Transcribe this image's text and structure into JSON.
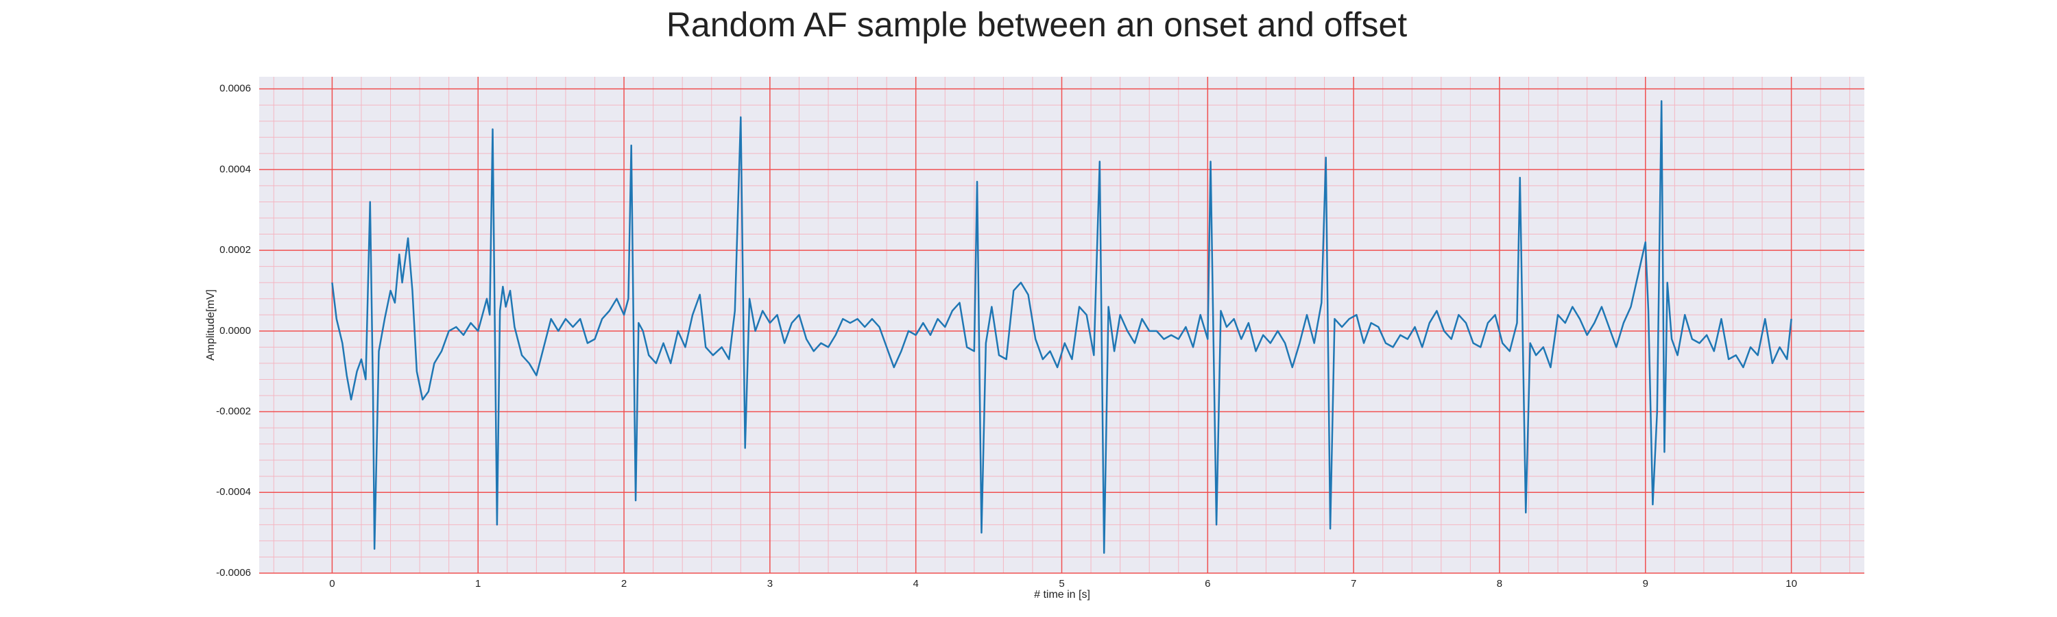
{
  "chart_data": {
    "type": "line",
    "title": "Random AF sample between an onset and offset",
    "x_label": "# time in [s]",
    "y_label": "Amplitude[mV]",
    "color": "#1f77b4",
    "grid": true,
    "minor_grid": true,
    "xlim": [
      -0.5,
      10.5
    ],
    "ylim": [
      -0.0006,
      0.00063
    ],
    "xticks": [
      0,
      1,
      2,
      3,
      4,
      5,
      6,
      7,
      8,
      9,
      10
    ],
    "yticks": [
      -0.0006,
      -0.0004,
      -0.0002,
      {
        "value": 0,
        "label": "0.0000"
      },
      0.0002,
      0.0004,
      0.0006
    ],
    "xticks_minor": [
      -0.4,
      -0.2,
      0.2,
      0.4,
      0.6,
      0.8,
      1.2,
      1.4,
      1.6,
      1.8,
      2.2,
      2.4,
      2.6,
      2.8,
      3.2,
      3.4,
      3.6,
      3.8,
      4.2,
      4.4,
      4.6,
      4.8,
      5.2,
      5.4,
      5.6,
      5.8,
      6.2,
      6.4,
      6.6,
      6.8,
      7.2,
      7.4,
      7.6,
      7.8,
      8.2,
      8.4,
      8.6,
      8.8,
      9.2,
      9.4,
      9.6,
      9.8,
      10.2,
      10.4
    ],
    "yticks_minor": [
      -0.00056,
      -0.00052,
      -0.00048,
      -0.00044,
      -0.00036,
      -0.00032,
      -0.00028,
      -0.00024,
      -0.00016,
      -0.00012,
      -8e-05,
      -4e-05,
      4e-05,
      8e-05,
      0.00012,
      0.00016,
      0.00024,
      0.00028,
      0.00032,
      0.00036,
      0.00044,
      0.00048,
      0.00052,
      0.00056
    ],
    "x": [
      0,
      0.03,
      0.07,
      0.1,
      0.13,
      0.17,
      0.2,
      0.23,
      0.26,
      0.28,
      0.29,
      0.32,
      0.36,
      0.4,
      0.43,
      0.46,
      0.48,
      0.52,
      0.55,
      0.58,
      0.62,
      0.66,
      0.7,
      0.75,
      0.8,
      0.85,
      0.9,
      0.95,
      1,
      1.03,
      1.06,
      1.08,
      1.1,
      1.13,
      1.15,
      1.17,
      1.19,
      1.22,
      1.25,
      1.3,
      1.35,
      1.4,
      1.45,
      1.5,
      1.55,
      1.6,
      1.65,
      1.7,
      1.75,
      1.8,
      1.85,
      1.9,
      1.95,
      2,
      2.03,
      2.05,
      2.08,
      2.1,
      2.13,
      2.17,
      2.22,
      2.27,
      2.32,
      2.37,
      2.42,
      2.47,
      2.52,
      2.56,
      2.61,
      2.67,
      2.72,
      2.76,
      2.8,
      2.83,
      2.86,
      2.9,
      2.95,
      3,
      3.05,
      3.1,
      3.15,
      3.2,
      3.25,
      3.3,
      3.35,
      3.4,
      3.45,
      3.5,
      3.55,
      3.6,
      3.65,
      3.7,
      3.75,
      3.8,
      3.85,
      3.9,
      3.95,
      4,
      4.05,
      4.1,
      4.15,
      4.2,
      4.25,
      4.3,
      4.35,
      4.4,
      4.42,
      4.45,
      4.48,
      4.52,
      4.57,
      4.62,
      4.67,
      4.72,
      4.77,
      4.82,
      4.87,
      4.92,
      4.97,
      5.02,
      5.07,
      5.12,
      5.17,
      5.22,
      5.26,
      5.29,
      5.32,
      5.36,
      5.4,
      5.45,
      5.5,
      5.55,
      5.6,
      5.65,
      5.7,
      5.75,
      5.8,
      5.85,
      5.9,
      5.95,
      6,
      6.02,
      6.06,
      6.09,
      6.13,
      6.18,
      6.23,
      6.28,
      6.33,
      6.38,
      6.43,
      6.48,
      6.53,
      6.58,
      6.63,
      6.68,
      6.73,
      6.78,
      6.81,
      6.84,
      6.87,
      6.92,
      6.97,
      7.02,
      7.07,
      7.12,
      7.17,
      7.22,
      7.27,
      7.32,
      7.37,
      7.42,
      7.47,
      7.52,
      7.57,
      7.62,
      7.67,
      7.72,
      7.77,
      7.82,
      7.87,
      7.92,
      7.97,
      8.02,
      8.07,
      8.12,
      8.14,
      8.18,
      8.21,
      8.25,
      8.3,
      8.35,
      8.4,
      8.45,
      8.5,
      8.55,
      8.6,
      8.65,
      8.7,
      8.75,
      8.8,
      8.85,
      8.9,
      8.95,
      9,
      9.02,
      9.05,
      9.08,
      9.11,
      9.13,
      9.15,
      9.18,
      9.22,
      9.27,
      9.32,
      9.37,
      9.42,
      9.47,
      9.52,
      9.57,
      9.62,
      9.67,
      9.72,
      9.77,
      9.82,
      9.87,
      9.92,
      9.97,
      10
    ],
    "values": [
      0.00012,
      3e-05,
      -3e-05,
      -0.00011,
      -0.00017,
      -0.0001,
      -7e-05,
      -0.00012,
      0.00032,
      -0.00015,
      -0.00054,
      -5e-05,
      3e-05,
      0.0001,
      7e-05,
      0.00019,
      0.00012,
      0.00023,
      0.0001,
      -0.0001,
      -0.00017,
      -0.00015,
      -8e-05,
      -5e-05,
      0,
      1e-05,
      -1e-05,
      2e-05,
      0,
      4e-05,
      8e-05,
      4e-05,
      0.0005,
      -0.00048,
      5e-05,
      0.00011,
      6e-05,
      0.0001,
      1e-05,
      -6e-05,
      -8e-05,
      -0.00011,
      -4e-05,
      3e-05,
      0,
      3e-05,
      1e-05,
      3e-05,
      -3e-05,
      -2e-05,
      3e-05,
      5e-05,
      8e-05,
      4e-05,
      8e-05,
      0.00046,
      -0.00042,
      2e-05,
      0,
      -6e-05,
      -8e-05,
      -3e-05,
      -8e-05,
      0,
      -4e-05,
      4e-05,
      9e-05,
      -4e-05,
      -6e-05,
      -4e-05,
      -7e-05,
      5e-05,
      0.00053,
      -0.00029,
      8e-05,
      0,
      5e-05,
      2e-05,
      4e-05,
      -3e-05,
      2e-05,
      4e-05,
      -2e-05,
      -5e-05,
      -3e-05,
      -4e-05,
      -1e-05,
      3e-05,
      2e-05,
      3e-05,
      1e-05,
      3e-05,
      1e-05,
      -4e-05,
      -9e-05,
      -5e-05,
      0,
      -1e-05,
      2e-05,
      -1e-05,
      3e-05,
      1e-05,
      5e-05,
      7e-05,
      -4e-05,
      -5e-05,
      0.00037,
      -0.0005,
      -3e-05,
      6e-05,
      -6e-05,
      -7e-05,
      0.0001,
      0.00012,
      9e-05,
      -2e-05,
      -7e-05,
      -5e-05,
      -9e-05,
      -3e-05,
      -7e-05,
      6e-05,
      4e-05,
      -6e-05,
      0.00042,
      -0.00055,
      6e-05,
      -5e-05,
      4e-05,
      0,
      -3e-05,
      3e-05,
      0,
      0,
      -2e-05,
      -1e-05,
      -2e-05,
      1e-05,
      -4e-05,
      4e-05,
      -2e-05,
      0.00042,
      -0.00048,
      5e-05,
      1e-05,
      3e-05,
      -2e-05,
      2e-05,
      -5e-05,
      -1e-05,
      -3e-05,
      0,
      -3e-05,
      -9e-05,
      -3e-05,
      4e-05,
      -3e-05,
      7e-05,
      0.00043,
      -0.00049,
      3e-05,
      1e-05,
      3e-05,
      4e-05,
      -3e-05,
      2e-05,
      1e-05,
      -3e-05,
      -4e-05,
      -1e-05,
      -2e-05,
      1e-05,
      -4e-05,
      2e-05,
      5e-05,
      0,
      -2e-05,
      4e-05,
      2e-05,
      -3e-05,
      -4e-05,
      2e-05,
      4e-05,
      -3e-05,
      -5e-05,
      2e-05,
      0.00038,
      -0.00045,
      -3e-05,
      -6e-05,
      -4e-05,
      -9e-05,
      4e-05,
      2e-05,
      6e-05,
      3e-05,
      -1e-05,
      2e-05,
      6e-05,
      1e-05,
      -4e-05,
      2e-05,
      6e-05,
      0.00014,
      0.00022,
      5e-05,
      -0.00043,
      -0.0002,
      0.00057,
      -0.0003,
      0.00012,
      -2e-05,
      -6e-05,
      4e-05,
      -2e-05,
      -3e-05,
      -1e-05,
      -5e-05,
      3e-05,
      -7e-05,
      -6e-05,
      -9e-05,
      -4e-05,
      -6e-05,
      3e-05,
      -8e-05,
      -4e-05,
      -7e-05,
      3e-05
    ]
  }
}
